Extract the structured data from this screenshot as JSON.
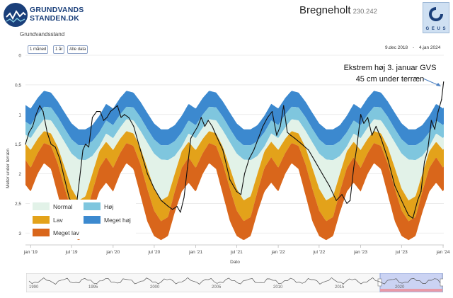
{
  "header": {
    "logo_text_line1": "GRUNDVANDS",
    "logo_text_line2": "STANDEN.DK",
    "section_label": "Grundvandsstand",
    "station_name": "Bregneholt",
    "station_id": "230.242",
    "agency_logo_text": "G E U S"
  },
  "controls": {
    "buttons": [
      "1 måned",
      "1 år",
      "Alle data"
    ],
    "date_from": "9.dec 2018",
    "date_separator": "-",
    "date_to": "4.jan 2024"
  },
  "annotation": {
    "line1": "Ekstrem høj 3. januar GVS",
    "line2": "45 cm under terræn"
  },
  "legend": {
    "items": [
      {
        "label": "Normal",
        "color": "#e2f2e8"
      },
      {
        "label": "Høj",
        "color": "#7fc6de"
      },
      {
        "label": "Lav",
        "color": "#e3a21a"
      },
      {
        "label": "Meget høj",
        "color": "#3c89cf"
      },
      {
        "label": "Meget lav",
        "color": "#d9661b"
      }
    ]
  },
  "navigator": {
    "year_labels": [
      "1990",
      "1995",
      "2000",
      "2005",
      "2010",
      "2015",
      "2020"
    ]
  },
  "chart_data": {
    "type": "area",
    "ylabel": "Meter under terræn",
    "xlabel": "Dato",
    "y_inverted": true,
    "ylim": [
      0,
      3.2
    ],
    "yticks": [
      0,
      0.5,
      1,
      1.5,
      2,
      2.5,
      3
    ],
    "ytick_labels": [
      "0",
      "0,5",
      "1",
      "1,5",
      "2",
      "2,5",
      "3"
    ],
    "xlim": [
      "2018-12-09",
      "2024-01-04"
    ],
    "xticks": [
      "2019-01-01",
      "2019-07-01",
      "2020-01-01",
      "2020-07-01",
      "2021-01-01",
      "2021-07-01",
      "2022-01-01",
      "2022-07-01",
      "2023-01-01",
      "2023-07-01",
      "2024-01-01"
    ],
    "xtick_labels": [
      "jan '19",
      "jul '19",
      "jan '20",
      "jul '20",
      "jan '21",
      "jul '21",
      "jan '22",
      "jul '22",
      "jan '23",
      "jul '23",
      "jan '24"
    ],
    "grid": true,
    "legend_position": "bottom-left",
    "band_colors": {
      "meget_hoej": "#3c89cf",
      "hoej": "#7fc6de",
      "normal": "#e2f2e8",
      "lav": "#e3a21a",
      "meget_lav": "#d9661b"
    },
    "seasonal_bands_day_of_year": [
      1,
      32,
      60,
      91,
      121,
      152,
      182,
      213,
      244,
      274,
      305,
      335,
      366
    ],
    "seasonal_bands": {
      "top": [
        0.9,
        0.72,
        0.6,
        0.63,
        0.78,
        0.97,
        1.15,
        1.25,
        1.25,
        1.18,
        1.02,
        0.82,
        0.9
      ],
      "hoej": [
        1.18,
        1.0,
        0.87,
        0.88,
        1.04,
        1.24,
        1.42,
        1.52,
        1.52,
        1.45,
        1.3,
        1.1,
        1.18
      ],
      "normal": [
        1.4,
        1.22,
        1.08,
        1.1,
        1.27,
        1.47,
        1.66,
        1.76,
        1.77,
        1.7,
        1.54,
        1.32,
        1.4
      ],
      "lav": [
        1.6,
        1.41,
        1.28,
        1.32,
        1.55,
        1.9,
        2.25,
        2.45,
        2.38,
        2.0,
        1.62,
        1.46,
        1.6
      ],
      "meget_lav": [
        1.9,
        1.65,
        1.48,
        1.53,
        1.83,
        2.25,
        2.62,
        2.8,
        2.73,
        2.3,
        1.9,
        1.72,
        1.9
      ],
      "bottom": [
        2.3,
        2.0,
        1.82,
        1.92,
        2.35,
        2.8,
        3.05,
        3.12,
        3.05,
        2.65,
        2.3,
        2.15,
        2.3
      ]
    },
    "series": [
      {
        "name": "Grundvandsstand",
        "color": "#111111",
        "x": [
          "2018-12-09",
          "2018-12-25",
          "2019-01-10",
          "2019-01-25",
          "2019-02-10",
          "2019-02-25",
          "2019-03-15",
          "2019-04-01",
          "2019-04-20",
          "2019-05-10",
          "2019-06-01",
          "2019-06-20",
          "2019-07-10",
          "2019-07-25",
          "2019-08-05",
          "2019-08-20",
          "2019-09-01",
          "2019-09-15",
          "2019-10-01",
          "2019-10-20",
          "2019-11-05",
          "2019-11-20",
          "2019-12-05",
          "2019-12-20",
          "2020-01-05",
          "2020-01-20",
          "2020-02-05",
          "2020-02-20",
          "2020-03-10",
          "2020-04-01",
          "2020-05-01",
          "2020-06-01",
          "2020-07-01",
          "2020-08-01",
          "2020-09-01",
          "2020-09-20",
          "2020-10-10",
          "2020-10-25",
          "2020-11-10",
          "2020-11-25",
          "2020-12-10",
          "2020-12-25",
          "2021-01-10",
          "2021-01-25",
          "2021-02-10",
          "2021-02-25",
          "2021-03-15",
          "2021-04-01",
          "2021-05-01",
          "2021-06-01",
          "2021-07-01",
          "2021-07-20",
          "2021-08-05",
          "2021-08-25",
          "2021-09-15",
          "2021-10-05",
          "2021-10-25",
          "2021-11-15",
          "2021-12-05",
          "2021-12-25",
          "2022-01-10",
          "2022-01-25",
          "2022-02-10",
          "2022-02-25",
          "2022-03-15",
          "2022-04-15",
          "2022-05-15",
          "2022-06-15",
          "2022-07-15",
          "2022-08-15",
          "2022-09-15",
          "2022-10-10",
          "2022-11-01",
          "2022-11-15",
          "2022-12-01",
          "2022-12-15",
          "2023-01-01",
          "2023-01-15",
          "2023-02-01",
          "2023-02-20",
          "2023-03-10",
          "2023-04-01",
          "2023-05-01",
          "2023-06-01",
          "2023-07-01",
          "2023-08-01",
          "2023-08-20",
          "2023-09-10",
          "2023-09-25",
          "2023-10-10",
          "2023-10-25",
          "2023-11-10",
          "2023-11-25",
          "2023-12-10",
          "2023-12-25",
          "2024-01-03"
        ],
        "y": [
          1.5,
          1.3,
          1.2,
          1.0,
          0.85,
          0.95,
          1.3,
          1.5,
          1.55,
          1.75,
          2.1,
          2.4,
          2.55,
          2.45,
          2.1,
          1.6,
          1.5,
          1.55,
          1.05,
          0.95,
          0.95,
          1.1,
          1.05,
          0.95,
          0.9,
          0.85,
          1.05,
          1.0,
          1.05,
          1.2,
          1.6,
          2.0,
          2.25,
          2.45,
          2.55,
          2.6,
          2.55,
          2.65,
          2.4,
          1.9,
          1.4,
          1.3,
          1.2,
          1.05,
          1.2,
          1.1,
          1.2,
          1.35,
          1.6,
          2.1,
          2.3,
          2.35,
          2.0,
          1.75,
          1.6,
          1.4,
          1.2,
          1.05,
          0.95,
          1.35,
          1.2,
          0.85,
          1.3,
          1.35,
          1.4,
          1.5,
          1.6,
          1.8,
          2.0,
          2.2,
          2.45,
          2.35,
          2.5,
          2.45,
          1.9,
          1.55,
          1.0,
          1.15,
          1.05,
          1.35,
          1.2,
          1.4,
          1.75,
          2.2,
          2.45,
          2.7,
          2.75,
          2.45,
          2.3,
          1.8,
          1.6,
          1.1,
          1.25,
          0.95,
          0.75,
          0.45
        ]
      }
    ]
  }
}
